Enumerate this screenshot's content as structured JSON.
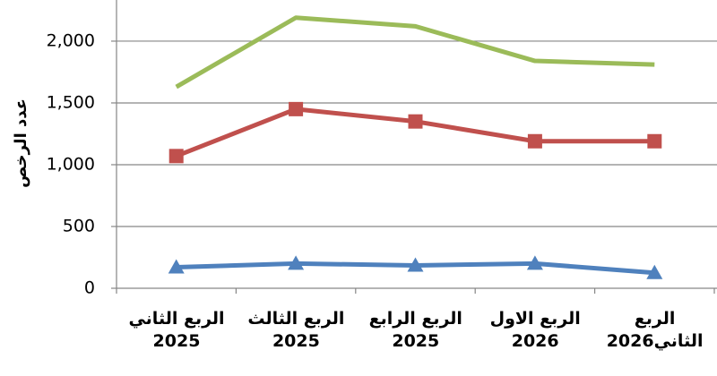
{
  "chart_data": {
    "type": "line",
    "y_label": "عدد الرخص",
    "categories": [
      "الربع الثاني\n2025",
      "الربع الثالث\n2025",
      "الربع الرابع\n2025",
      "الربع الاول\n2026",
      "الربع\nالثاني2026"
    ],
    "series": [
      {
        "color": "#9bbb59",
        "marker": "none",
        "values": [
          1630,
          2190,
          2120,
          1840,
          1810
        ]
      },
      {
        "color": "#c0504d",
        "marker": "square",
        "values": [
          1070,
          1450,
          1350,
          1190,
          1190
        ]
      },
      {
        "color": "#4f81bd",
        "marker": "triangle",
        "values": [
          170,
          200,
          185,
          200,
          125
        ]
      }
    ],
    "ylim": [
      0,
      2333
    ],
    "yticks": [
      0,
      500,
      {
        "value": 1000,
        "label": "1,000"
      },
      {
        "value": 1500,
        "label": "1,500"
      },
      {
        "value": 2000,
        "label": "2,000"
      }
    ],
    "grid": true
  }
}
